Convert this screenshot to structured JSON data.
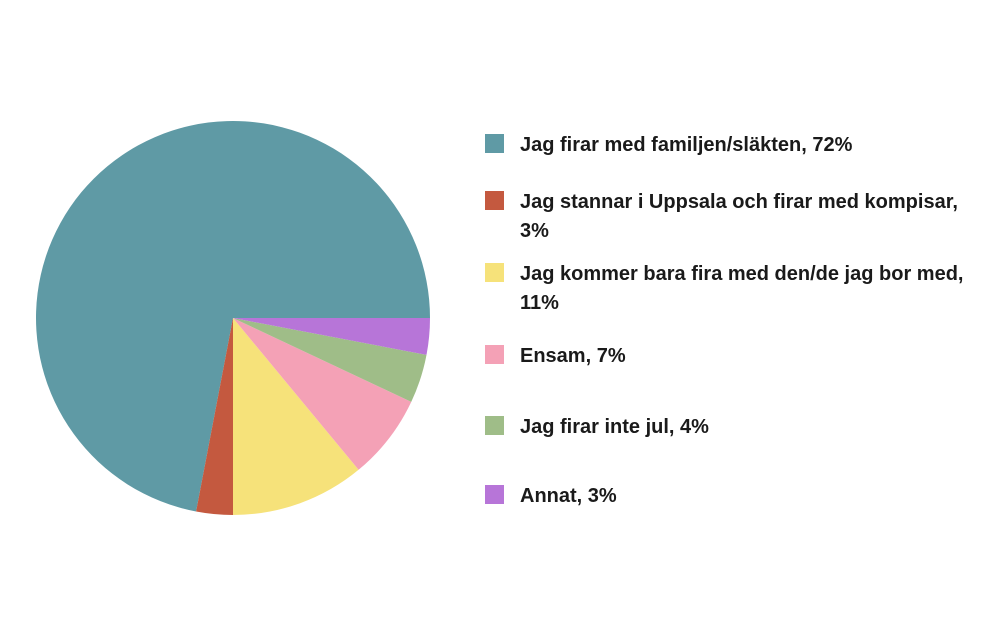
{
  "chart_data": {
    "type": "pie",
    "categories": [
      "Jag firar med familjen/släkten, 72%",
      "Jag stannar i Uppsala och firar med kompisar, 3%",
      "Jag kommer bara fira med den/de jag bor med, 11%",
      "Ensam, 7%",
      "Jag firar inte jul, 4%",
      "Annat, 3%"
    ],
    "values": [
      72,
      3,
      11,
      7,
      4,
      3
    ],
    "colors": [
      "#5f9aa5",
      "#c4593f",
      "#f6e27a",
      "#f4a1b6",
      "#9fbd88",
      "#b775d8"
    ],
    "start_angle": 0,
    "direction": "counterclockwise"
  }
}
